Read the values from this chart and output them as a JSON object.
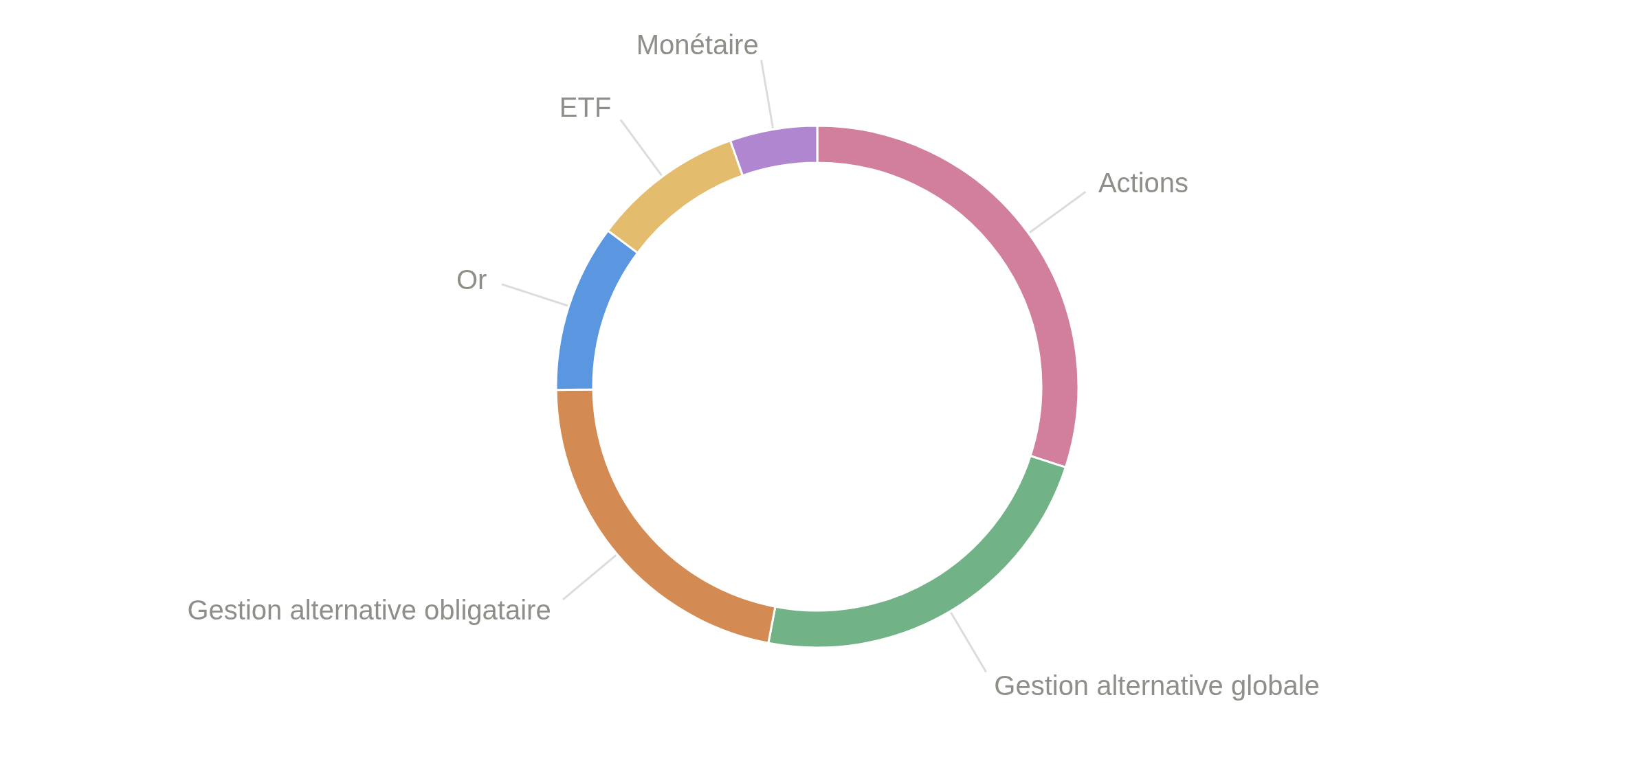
{
  "chart_data": {
    "type": "donut",
    "categories": [
      "Actions",
      "Gestion alternative globale",
      "Gestion alternative obligataire",
      "Or",
      "ETF",
      "Monétaire"
    ],
    "values": [
      30,
      23,
      21.8,
      10.4,
      9.4,
      5.4
    ],
    "colors": [
      "#d17f9c",
      "#72b287",
      "#d48b53",
      "#5a97e0",
      "#e3bc6d",
      "#b186d1"
    ],
    "legend": false
  }
}
